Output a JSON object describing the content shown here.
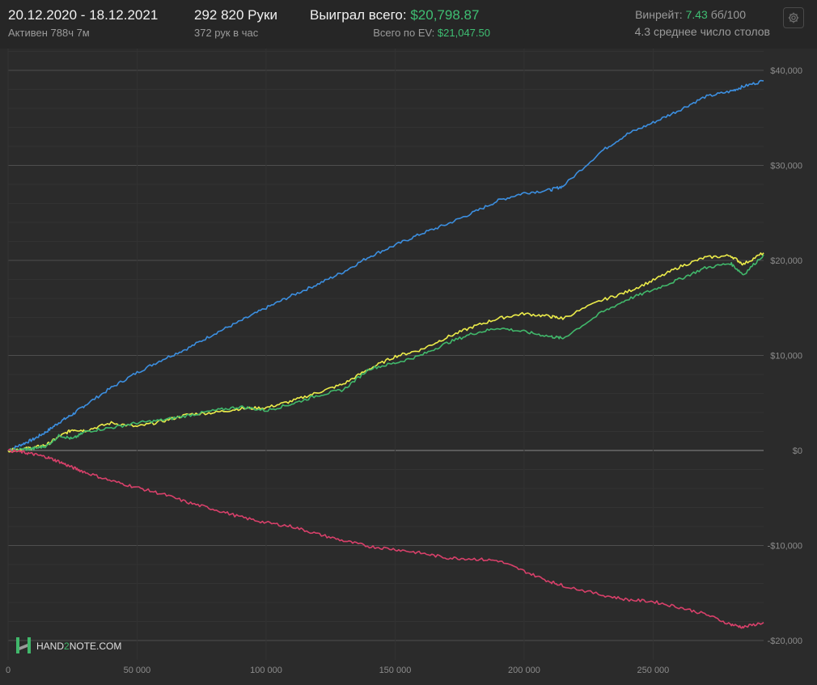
{
  "header": {
    "dates": "20.12.2020 - 18.12.2021",
    "active": "Активен 788ч 7м",
    "hands": "292 820 Руки",
    "hands_per_hour": "372 рук в час",
    "won_label": "Выиграл всего:",
    "won_value": "$20,798.87",
    "ev_label": "Всего по EV:",
    "ev_value": "$21,047.50",
    "winrate_label": "Винрейт:",
    "winrate_value": "7.43",
    "winrate_unit": "бб/100",
    "tables": "4.3 среднее число столов"
  },
  "settings_icon": "gear-icon",
  "logo": {
    "text_a": "HAND",
    "text_b": "2",
    "text_c": "NOTE.COM"
  },
  "colors": {
    "background": "#262626",
    "plot_bg": "#2b2b2b",
    "won": "#41b86b",
    "blue": "#3c8fe0",
    "yellow": "#ecec4a",
    "red": "#d8406a"
  },
  "chart_data": {
    "type": "line",
    "xlim": [
      0,
      292820
    ],
    "ylim": [
      -21000,
      42000
    ],
    "grid": true,
    "x_ticks": [
      0,
      50000,
      100000,
      150000,
      200000,
      250000
    ],
    "x_tick_labels": [
      "0",
      "50 000",
      "100 000",
      "150 000",
      "200 000",
      "250 000"
    ],
    "y_ticks": [
      40000,
      30000,
      20000,
      10000,
      0,
      -10000,
      -20000
    ],
    "y_tick_labels": [
      "$40,000",
      "$30,000",
      "$20,000",
      "$10,000",
      "$0",
      "-$10,000",
      "-$20,000"
    ],
    "series": [
      {
        "color": "#3c8fe0",
        "x": [
          0,
          5000,
          10000,
          15000,
          20000,
          25000,
          30000,
          40000,
          50000,
          60000,
          70000,
          80000,
          90000,
          100000,
          110000,
          120000,
          130000,
          140000,
          150000,
          160000,
          170000,
          180000,
          190000,
          200000,
          210000,
          215000,
          230000,
          240000,
          250000,
          260000,
          270000,
          280000,
          285000,
          292820
        ],
        "y": [
          0,
          600,
          1200,
          2000,
          3000,
          3800,
          4800,
          6600,
          8200,
          9600,
          10800,
          12300,
          13600,
          15000,
          16300,
          17500,
          18800,
          20400,
          21600,
          22800,
          23800,
          25000,
          26300,
          27100,
          27400,
          27800,
          31500,
          33300,
          34500,
          35800,
          37200,
          37800,
          38300,
          38900
        ]
      },
      {
        "color": "#ecec4a",
        "x": [
          0,
          5000,
          10000,
          15000,
          20000,
          25000,
          30000,
          40000,
          50000,
          60000,
          70000,
          80000,
          90000,
          100000,
          110000,
          120000,
          130000,
          140000,
          150000,
          160000,
          170000,
          180000,
          190000,
          200000,
          210000,
          215000,
          230000,
          240000,
          250000,
          260000,
          270000,
          280000,
          285000,
          292820
        ],
        "y": [
          0,
          150,
          300,
          600,
          1500,
          2200,
          2100,
          2900,
          2500,
          3100,
          3800,
          4000,
          4400,
          4500,
          5200,
          6100,
          7000,
          8600,
          9900,
          10600,
          11900,
          13000,
          13900,
          14400,
          14100,
          13900,
          15800,
          16700,
          17900,
          19300,
          20300,
          20500,
          19600,
          20800
        ]
      },
      {
        "color": "#41b86b",
        "x": [
          0,
          5000,
          10000,
          15000,
          20000,
          25000,
          30000,
          40000,
          50000,
          60000,
          70000,
          80000,
          90000,
          100000,
          110000,
          120000,
          130000,
          140000,
          150000,
          160000,
          170000,
          180000,
          190000,
          200000,
          210000,
          215000,
          230000,
          240000,
          250000,
          260000,
          270000,
          280000,
          285000,
          292820
        ],
        "y": [
          0,
          100,
          200,
          500,
          1600,
          1200,
          2000,
          2400,
          2900,
          3200,
          3700,
          4200,
          4600,
          4200,
          4900,
          5800,
          6400,
          8600,
          9200,
          10000,
          11300,
          12300,
          12900,
          12500,
          12000,
          11800,
          14500,
          15900,
          16900,
          18000,
          19200,
          19700,
          18500,
          20600
        ]
      },
      {
        "color": "#d8406a",
        "x": [
          0,
          5000,
          10000,
          15000,
          20000,
          25000,
          30000,
          40000,
          50000,
          60000,
          70000,
          80000,
          90000,
          100000,
          110000,
          120000,
          130000,
          140000,
          150000,
          160000,
          170000,
          180000,
          190000,
          200000,
          210000,
          215000,
          230000,
          240000,
          250000,
          260000,
          270000,
          280000,
          285000,
          292820
        ],
        "y": [
          0,
          -150,
          -400,
          -700,
          -1200,
          -1800,
          -2300,
          -3200,
          -3900,
          -4600,
          -5500,
          -6200,
          -7000,
          -7600,
          -8000,
          -8800,
          -9500,
          -10100,
          -10400,
          -10800,
          -11300,
          -11400,
          -11600,
          -12700,
          -13800,
          -14200,
          -15200,
          -15700,
          -15900,
          -16500,
          -17200,
          -18300,
          -18600,
          -18100
        ]
      }
    ]
  }
}
